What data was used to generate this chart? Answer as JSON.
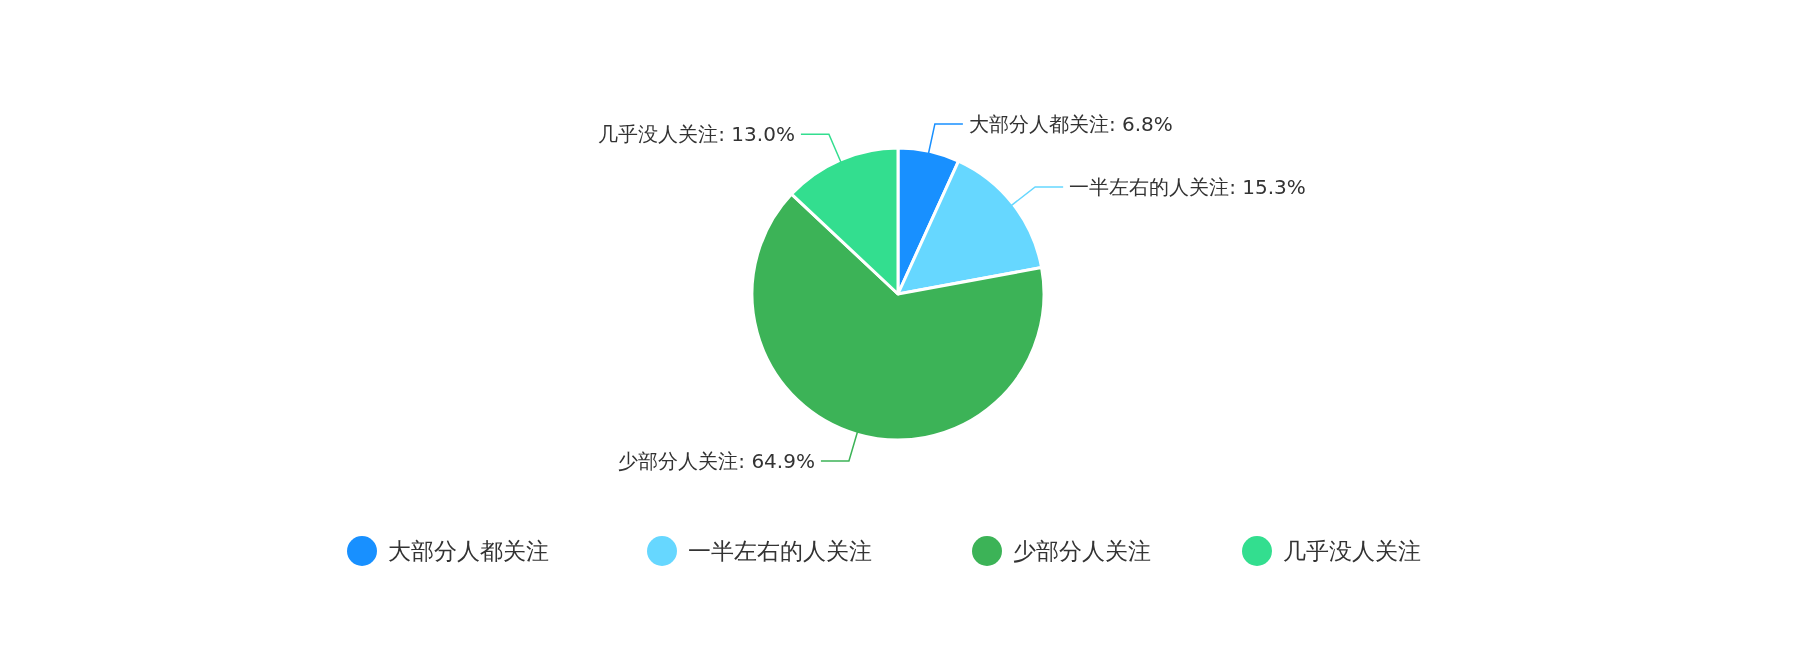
{
  "chart_data": {
    "type": "pie",
    "categories": [
      "大部分人都关注",
      "一半左右的人关注",
      "少部分人关注",
      "几乎没人关注"
    ],
    "values": [
      6.8,
      15.3,
      64.9,
      13.0
    ],
    "colors": [
      "#1890ff",
      "#66d7ff",
      "#3cb357",
      "#33de8f"
    ],
    "value_labels": [
      "大部分人都关注: 6.8%",
      "一半左右的人关注: 15.3%",
      "少部分人关注: 64.9%",
      "几乎没人关注: 13.0%"
    ],
    "legend": "bottom"
  }
}
